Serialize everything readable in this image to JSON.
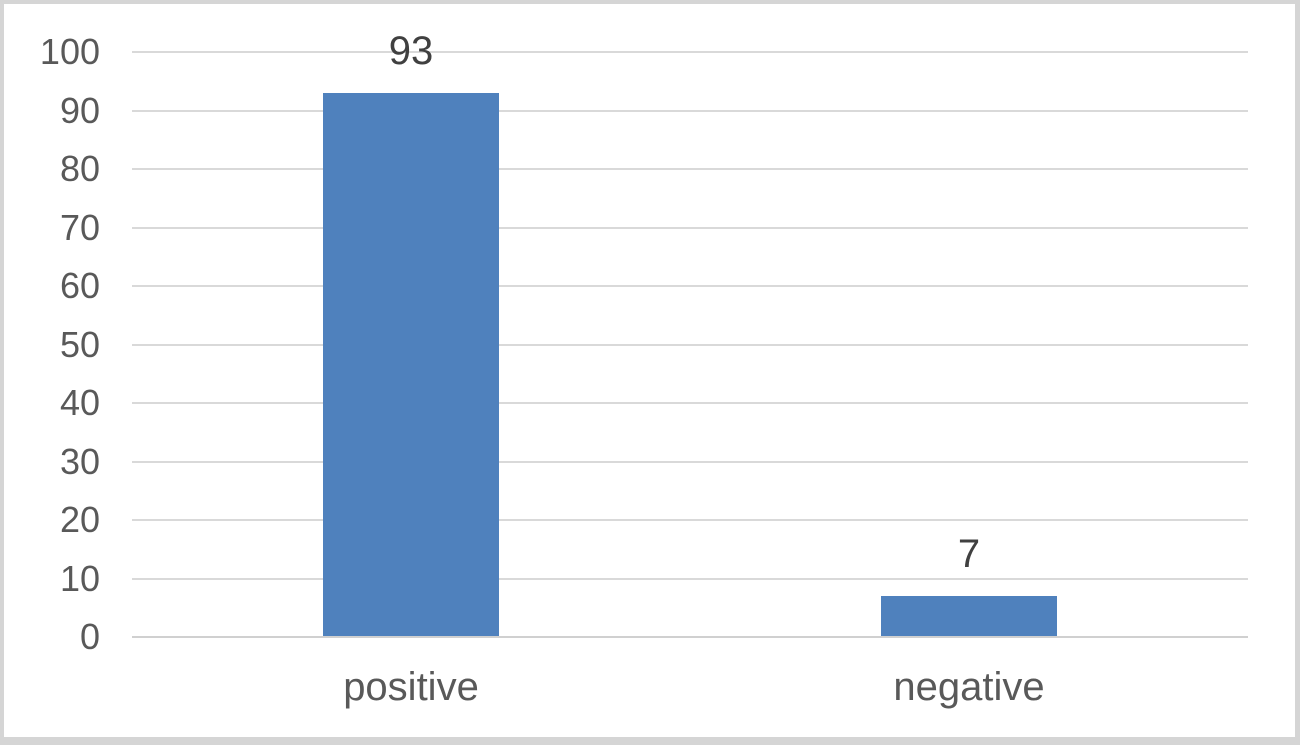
{
  "chart_data": {
    "type": "bar",
    "categories": [
      "positive",
      "negative"
    ],
    "values": [
      93,
      7
    ],
    "data_labels": [
      "93",
      "7"
    ],
    "title": "",
    "xlabel": "",
    "ylabel": "",
    "ylim": [
      0,
      100
    ],
    "ytick_interval": 10,
    "ytick_labels": [
      "0",
      "10",
      "20",
      "30",
      "40",
      "50",
      "60",
      "70",
      "80",
      "90",
      "100"
    ],
    "grid": true,
    "legend": "none",
    "colors": {
      "bar_fill": "#4F81BD",
      "gridline": "#D9D9D9",
      "axis_line": "#D0D0D0",
      "tick_label_text": "#595959",
      "category_label_text": "#595959",
      "data_label_text": "#404040",
      "chart_background": "#FFFFFF",
      "frame_border": "#D5D5D5"
    }
  }
}
